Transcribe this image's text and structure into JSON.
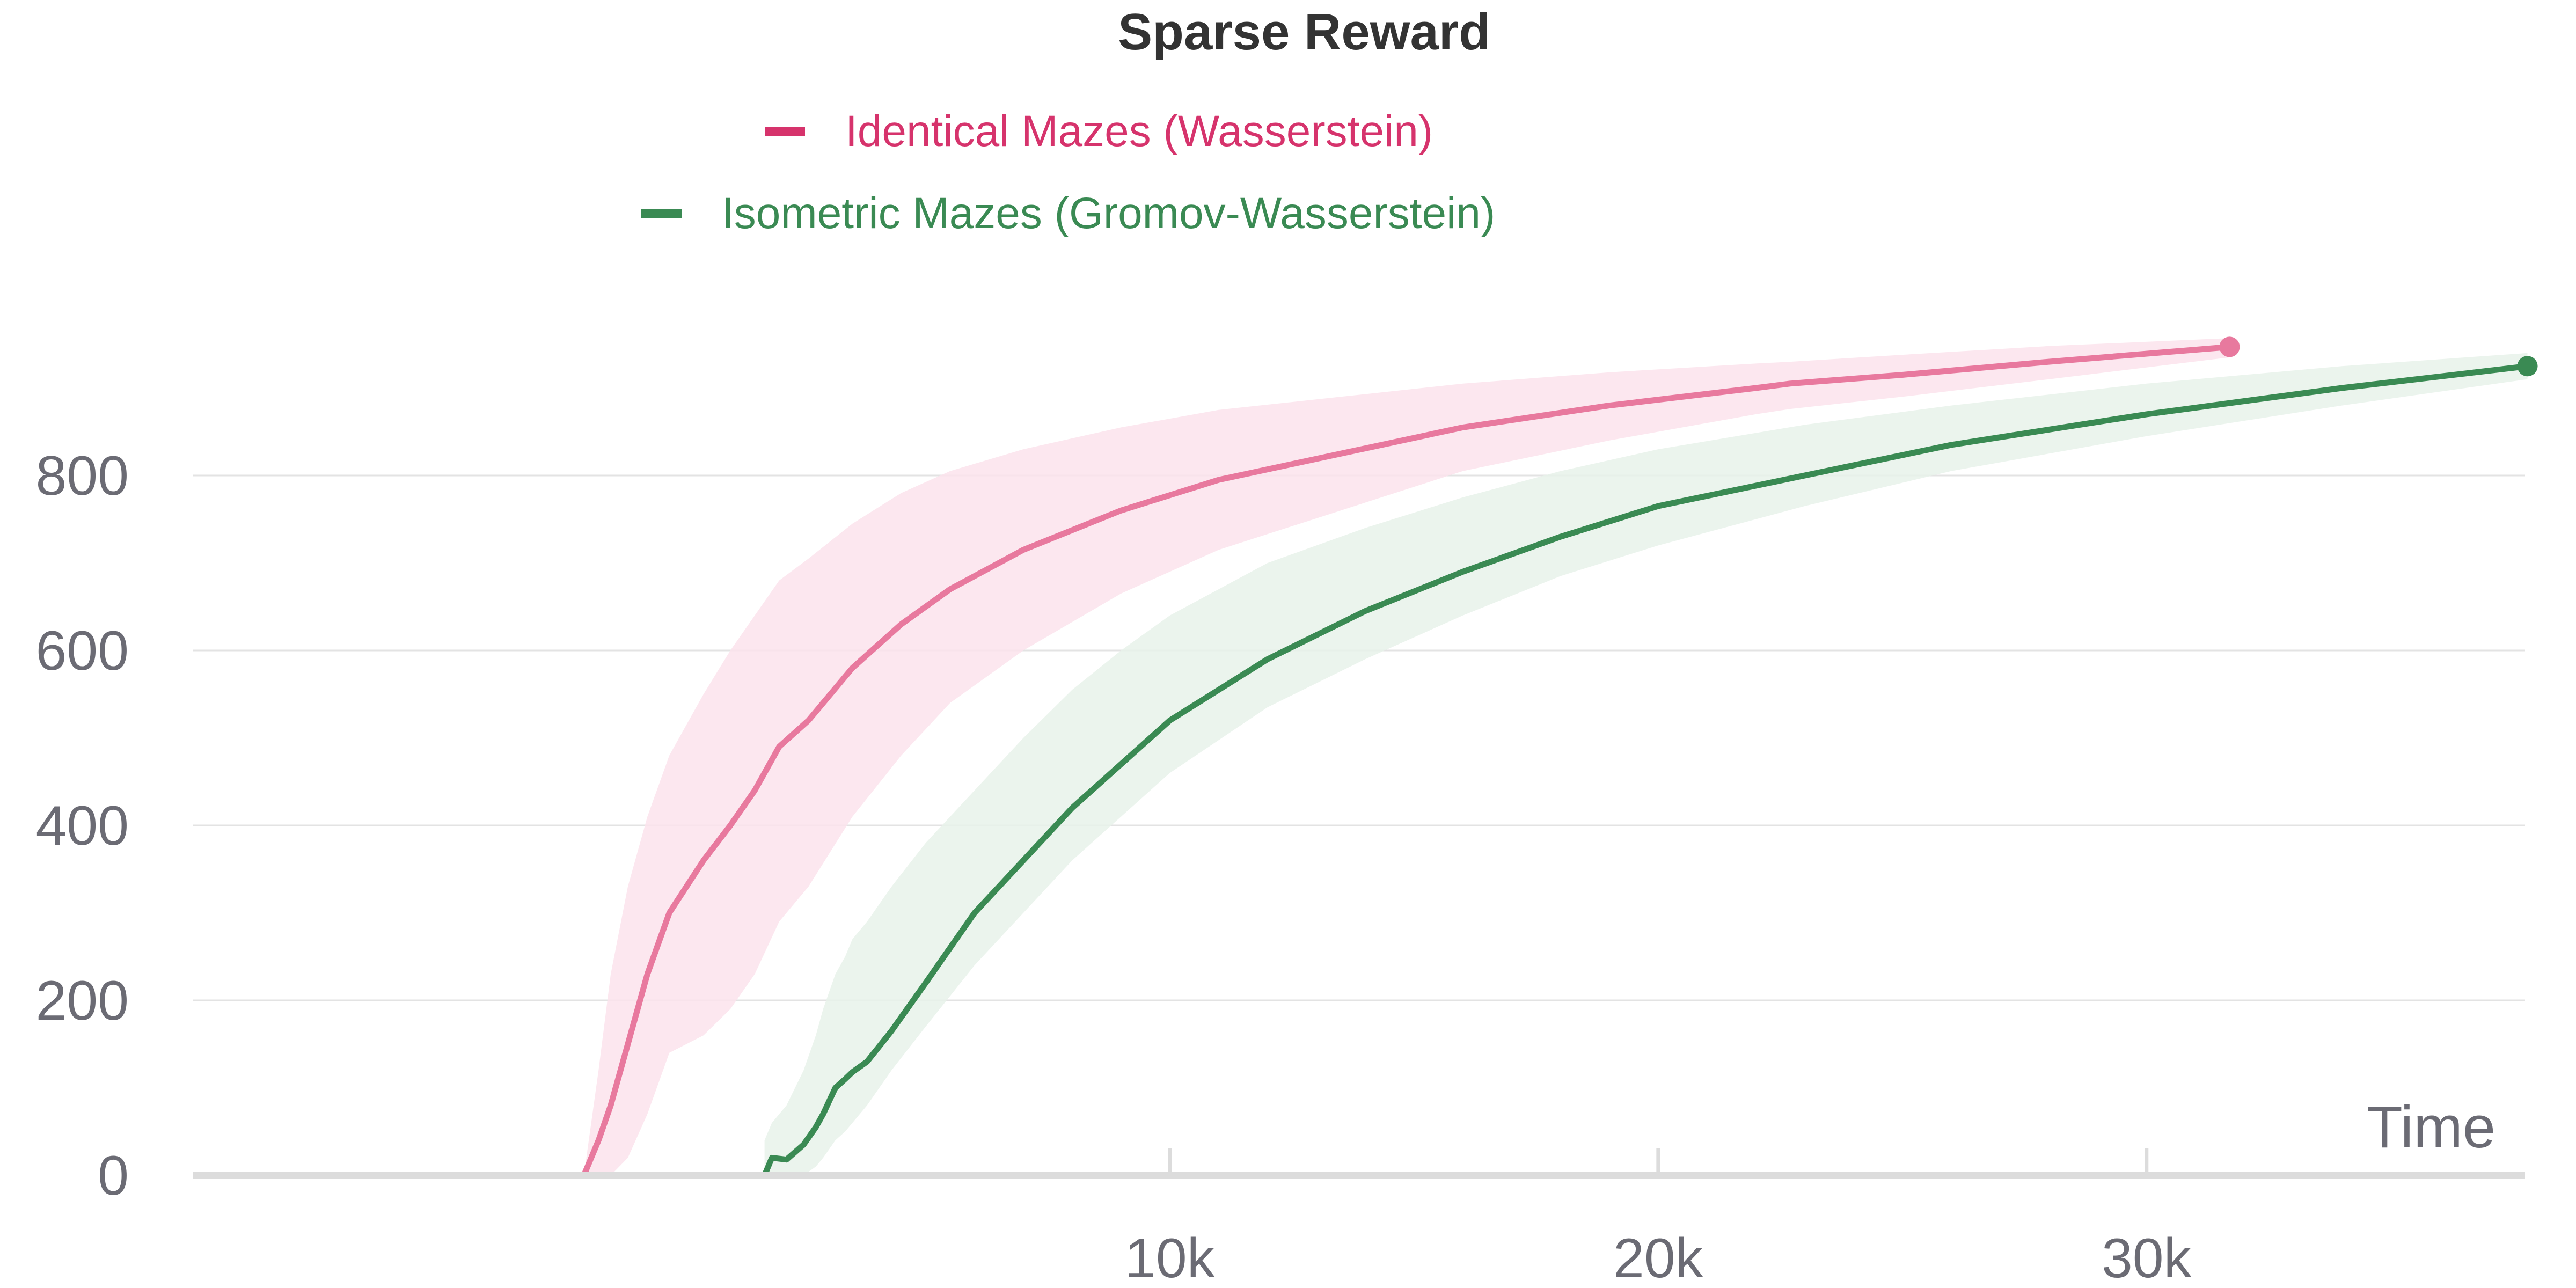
{
  "chart_data": {
    "type": "line",
    "title": "Sparse Reward",
    "xlabel": "Time",
    "ylabel": "",
    "xlim": [
      -10000,
      37750
    ],
    "ylim": [
      0,
      1000
    ],
    "x_ticks": [
      10000,
      20000,
      30000
    ],
    "x_tick_labels": [
      "10k",
      "20k",
      "30k"
    ],
    "y_ticks": [
      0,
      200,
      400,
      600,
      800
    ],
    "y_tick_labels": [
      "0",
      "200",
      "400",
      "600",
      "800"
    ],
    "grid": true,
    "legend_position": "top-center",
    "series": [
      {
        "name": "Identical Mazes (Wasserstein)",
        "color": "#e8799e",
        "legend_color": "#d6336c",
        "band_color": "#fbe3ec",
        "x": [
          -2000,
          -1700,
          -1450,
          -1100,
          -700,
          -250,
          450,
          1000,
          1500,
          2000,
          2600,
          3500,
          4500,
          5500,
          7000,
          9000,
          11000,
          13500,
          16000,
          19000,
          22000,
          22700,
          25000,
          28000,
          31700
        ],
        "y": [
          0,
          40,
          80,
          150,
          230,
          300,
          360,
          400,
          440,
          490,
          520,
          580,
          630,
          670,
          715,
          760,
          795,
          825,
          855,
          880,
          900,
          905,
          915,
          930,
          947
        ],
        "upper": [
          0,
          120,
          230,
          330,
          410,
          480,
          550,
          600,
          640,
          680,
          705,
          745,
          780,
          805,
          830,
          855,
          875,
          890,
          905,
          918,
          928,
          930,
          938,
          948,
          957
        ],
        "lower": [
          0,
          0,
          0,
          20,
          70,
          140,
          160,
          190,
          230,
          290,
          330,
          410,
          480,
          540,
          600,
          665,
          715,
          760,
          805,
          840,
          870,
          876,
          890,
          910,
          935
        ]
      },
      {
        "name": "Isometric Mazes (Gromov-Wasserstein)",
        "color": "#3a8a53",
        "legend_color": "#3a8a53",
        "band_color": "#e7f2ea",
        "x": [
          1700,
          1850,
          2150,
          2500,
          2750,
          2900,
          3150,
          3350,
          3500,
          3800,
          4300,
          5000,
          6000,
          7000,
          8000,
          9000,
          10000,
          12000,
          14000,
          16000,
          18000,
          20000,
          23000,
          26000,
          30000,
          34000,
          37800
        ],
        "y": [
          0,
          20,
          18,
          35,
          55,
          70,
          100,
          110,
          118,
          130,
          165,
          220,
          300,
          360,
          420,
          470,
          520,
          590,
          645,
          690,
          730,
          765,
          800,
          835,
          870,
          900,
          925
        ],
        "upper": [
          40,
          60,
          80,
          120,
          160,
          190,
          230,
          250,
          270,
          290,
          330,
          380,
          440,
          500,
          555,
          600,
          640,
          700,
          740,
          775,
          805,
          830,
          858,
          880,
          905,
          925,
          940
        ],
        "lower": [
          0,
          0,
          0,
          0,
          10,
          20,
          40,
          50,
          60,
          80,
          120,
          170,
          240,
          300,
          360,
          410,
          460,
          535,
          590,
          640,
          685,
          720,
          765,
          805,
          845,
          880,
          910
        ]
      }
    ]
  }
}
